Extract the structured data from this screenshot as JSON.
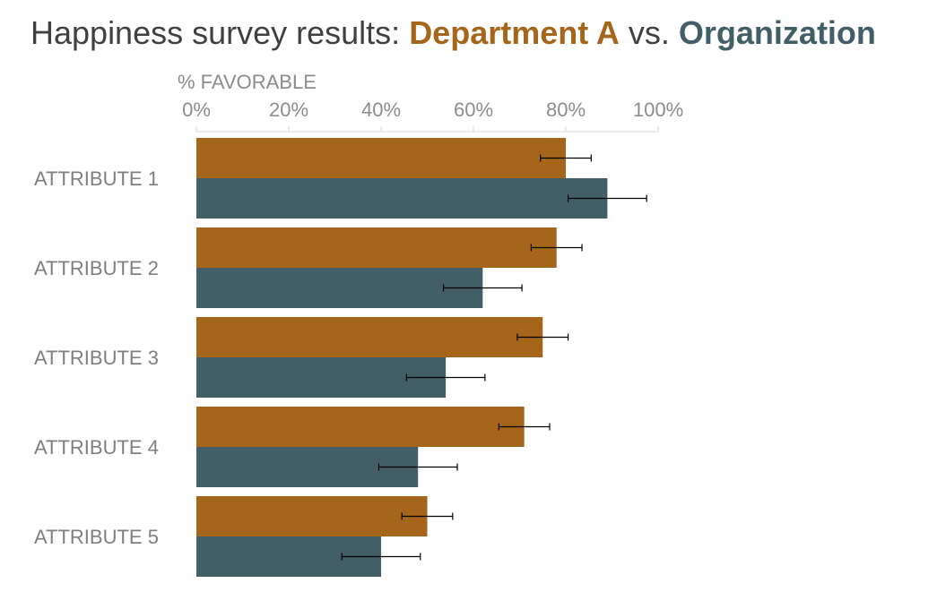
{
  "title": {
    "prefix": "Happiness survey results: ",
    "dept": "Department A",
    "middle": " vs. ",
    "org": "Organization"
  },
  "colors": {
    "dept": "#A5651A",
    "org": "#425F68",
    "title_text": "#404040",
    "axis_text": "#8C8C8C",
    "error_bar": "#000000"
  },
  "chart_data": {
    "type": "bar",
    "orientation": "horizontal",
    "categories": [
      "ATTRIBUTE 1",
      "ATTRIBUTE 2",
      "ATTRIBUTE 3",
      "ATTRIBUTE 4",
      "ATTRIBUTE 5"
    ],
    "xlabel": "% FAVORABLE",
    "xlim": [
      0,
      100
    ],
    "xticks": [
      "0%",
      "20%",
      "40%",
      "60%",
      "80%",
      "100%"
    ],
    "legend": "in title",
    "grid": false,
    "series": [
      {
        "name": "Department A",
        "color": "#A5651A",
        "values": [
          80,
          78,
          75,
          71,
          50
        ],
        "error_low": [
          74.5,
          72.5,
          69.5,
          65.5,
          44.5
        ],
        "error_high": [
          85.5,
          83.5,
          80.5,
          76.5,
          55.5
        ]
      },
      {
        "name": "Organization",
        "color": "#425F68",
        "values": [
          89,
          62,
          54,
          48,
          40
        ],
        "error_low": [
          80.5,
          53.5,
          45.5,
          39.5,
          31.5
        ],
        "error_high": [
          97.5,
          70.5,
          62.5,
          56.5,
          48.5
        ]
      }
    ]
  }
}
